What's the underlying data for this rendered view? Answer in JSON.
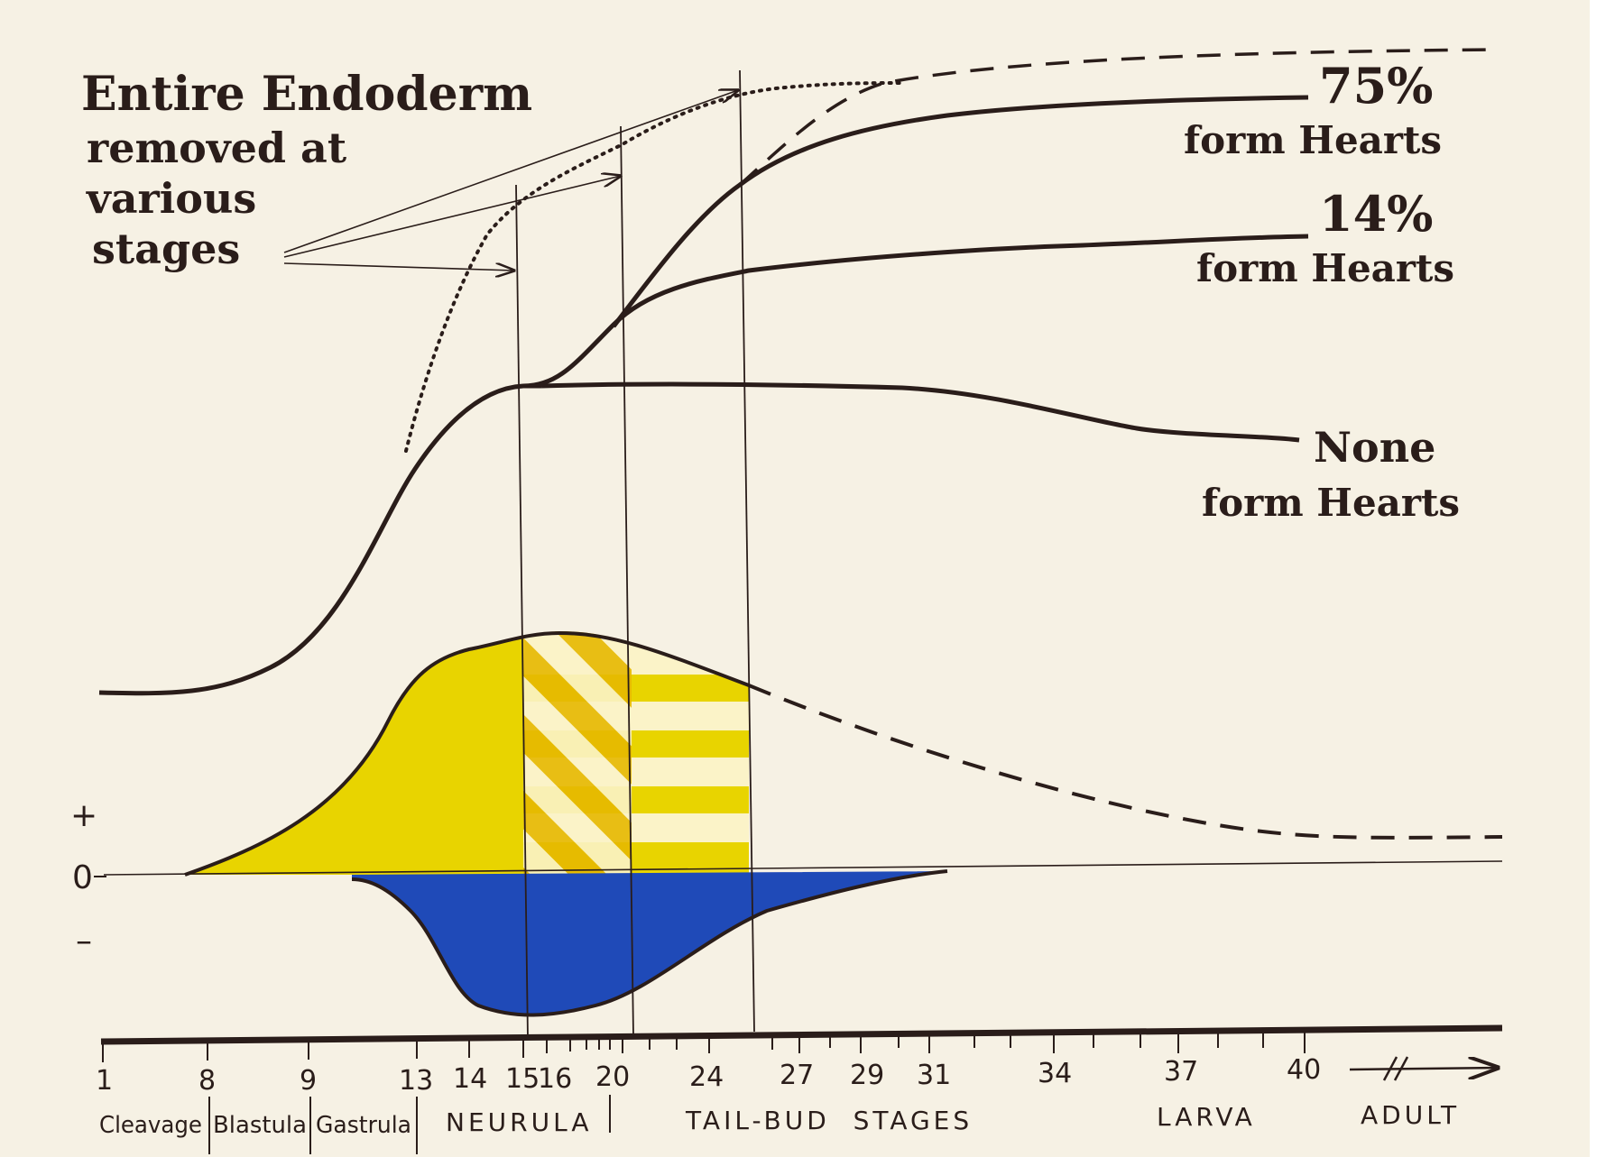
{
  "title": {
    "lines": [
      "Entire Endoderm",
      "removed at",
      "various",
      "stages"
    ]
  },
  "outcomes": [
    {
      "percent": "75%",
      "label": "form Hearts"
    },
    {
      "percent": "14%",
      "label": "form Hearts"
    },
    {
      "percent": "None",
      "label": "form Hearts"
    }
  ],
  "sign_labels": {
    "plus": "+",
    "zero": "0",
    "minus": "–"
  },
  "axis": {
    "ticks": [
      "1",
      "8",
      "9",
      "13",
      "14",
      "15",
      "16",
      "20",
      "24",
      "27",
      "29",
      "31",
      "34",
      "37",
      "40"
    ],
    "phases": [
      "Cleavage",
      "Blastula",
      "Gastrula",
      "NEURULA",
      "TAIL-BUD  STAGES",
      "LARVA",
      "ADULT"
    ]
  },
  "colors": {
    "ink": "#2a1d1a",
    "yellow": "#e8d400",
    "yellow_hatch": "#e6b800",
    "blue": "#1f4ab8",
    "paper": "#f6f1e4"
  }
}
